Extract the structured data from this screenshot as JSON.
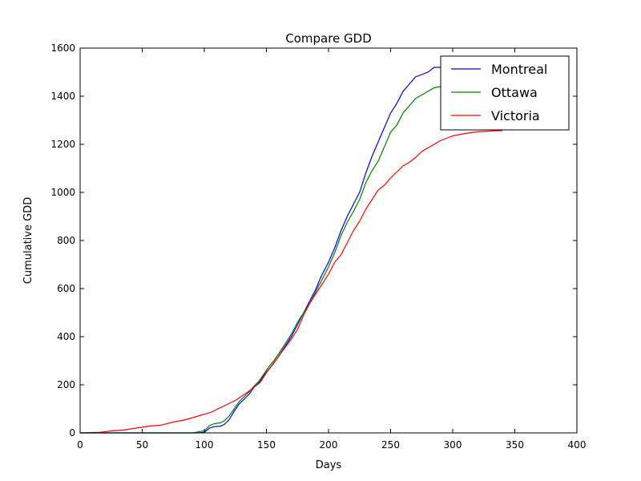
{
  "chart_data": {
    "type": "line",
    "title": "Compare GDD",
    "xlabel": "Days",
    "ylabel": "Cumulative GDD",
    "xlim": [
      0,
      400
    ],
    "ylim": [
      0,
      1600
    ],
    "xticks": [
      0,
      50,
      100,
      150,
      200,
      250,
      300,
      350,
      400
    ],
    "yticks": [
      0,
      200,
      400,
      600,
      800,
      1000,
      1200,
      1400,
      1600
    ],
    "grid": false,
    "legend_position": "upper right",
    "series": [
      {
        "name": "Montreal",
        "color": "#0000ff",
        "points": [
          [
            0,
            0
          ],
          [
            94,
            0
          ],
          [
            100,
            2
          ],
          [
            104,
            20
          ],
          [
            108,
            26
          ],
          [
            113,
            28
          ],
          [
            116,
            35
          ],
          [
            120,
            55
          ],
          [
            124,
            90
          ],
          [
            128,
            120
          ],
          [
            132,
            140
          ],
          [
            136,
            160
          ],
          [
            140,
            190
          ],
          [
            144,
            210
          ],
          [
            148,
            240
          ],
          [
            152,
            265
          ],
          [
            156,
            290
          ],
          [
            160,
            320
          ],
          [
            165,
            360
          ],
          [
            170,
            400
          ],
          [
            175,
            450
          ],
          [
            180,
            500
          ],
          [
            185,
            550
          ],
          [
            190,
            600
          ],
          [
            194,
            650
          ],
          [
            200,
            710
          ],
          [
            205,
            770
          ],
          [
            210,
            840
          ],
          [
            215,
            900
          ],
          [
            220,
            950
          ],
          [
            225,
            1000
          ],
          [
            230,
            1080
          ],
          [
            235,
            1150
          ],
          [
            240,
            1210
          ],
          [
            245,
            1270
          ],
          [
            250,
            1330
          ],
          [
            255,
            1370
          ],
          [
            260,
            1420
          ],
          [
            265,
            1450
          ],
          [
            270,
            1480
          ],
          [
            275,
            1490
          ],
          [
            280,
            1500
          ],
          [
            285,
            1520
          ],
          [
            290,
            1520
          ]
        ]
      },
      {
        "name": "Ottawa",
        "color": "#008000",
        "points": [
          [
            0,
            0
          ],
          [
            91,
            0
          ],
          [
            96,
            5
          ],
          [
            100,
            8
          ],
          [
            104,
            30
          ],
          [
            108,
            38
          ],
          [
            113,
            42
          ],
          [
            116,
            50
          ],
          [
            120,
            70
          ],
          [
            124,
            100
          ],
          [
            128,
            130
          ],
          [
            132,
            150
          ],
          [
            136,
            170
          ],
          [
            140,
            195
          ],
          [
            144,
            215
          ],
          [
            148,
            245
          ],
          [
            152,
            275
          ],
          [
            156,
            300
          ],
          [
            160,
            330
          ],
          [
            165,
            370
          ],
          [
            170,
            410
          ],
          [
            175,
            460
          ],
          [
            180,
            500
          ],
          [
            185,
            540
          ],
          [
            190,
            590
          ],
          [
            195,
            640
          ],
          [
            200,
            690
          ],
          [
            205,
            750
          ],
          [
            210,
            820
          ],
          [
            215,
            875
          ],
          [
            220,
            920
          ],
          [
            225,
            970
          ],
          [
            230,
            1040
          ],
          [
            235,
            1090
          ],
          [
            240,
            1130
          ],
          [
            245,
            1190
          ],
          [
            250,
            1250
          ],
          [
            255,
            1280
          ],
          [
            260,
            1330
          ],
          [
            265,
            1360
          ],
          [
            270,
            1390
          ],
          [
            275,
            1405
          ],
          [
            280,
            1420
          ],
          [
            285,
            1435
          ],
          [
            290,
            1440
          ]
        ]
      },
      {
        "name": "Victoria",
        "color": "#ff0000",
        "points": [
          [
            0,
            0
          ],
          [
            15,
            2
          ],
          [
            25,
            8
          ],
          [
            35,
            12
          ],
          [
            45,
            20
          ],
          [
            55,
            28
          ],
          [
            65,
            32
          ],
          [
            75,
            45
          ],
          [
            85,
            55
          ],
          [
            95,
            70
          ],
          [
            105,
            85
          ],
          [
            115,
            110
          ],
          [
            125,
            135
          ],
          [
            135,
            170
          ],
          [
            145,
            210
          ],
          [
            150,
            250
          ],
          [
            155,
            285
          ],
          [
            160,
            320
          ],
          [
            165,
            355
          ],
          [
            170,
            390
          ],
          [
            175,
            430
          ],
          [
            180,
            490
          ],
          [
            185,
            540
          ],
          [
            190,
            580
          ],
          [
            195,
            620
          ],
          [
            200,
            660
          ],
          [
            205,
            710
          ],
          [
            210,
            740
          ],
          [
            215,
            790
          ],
          [
            220,
            840
          ],
          [
            225,
            880
          ],
          [
            230,
            930
          ],
          [
            235,
            970
          ],
          [
            240,
            1010
          ],
          [
            245,
            1030
          ],
          [
            250,
            1060
          ],
          [
            255,
            1085
          ],
          [
            260,
            1110
          ],
          [
            265,
            1125
          ],
          [
            270,
            1145
          ],
          [
            275,
            1170
          ],
          [
            280,
            1185
          ],
          [
            285,
            1200
          ],
          [
            290,
            1215
          ],
          [
            295,
            1225
          ],
          [
            300,
            1235
          ],
          [
            305,
            1240
          ],
          [
            310,
            1245
          ],
          [
            320,
            1252
          ],
          [
            330,
            1255
          ],
          [
            340,
            1257
          ]
        ]
      }
    ]
  }
}
